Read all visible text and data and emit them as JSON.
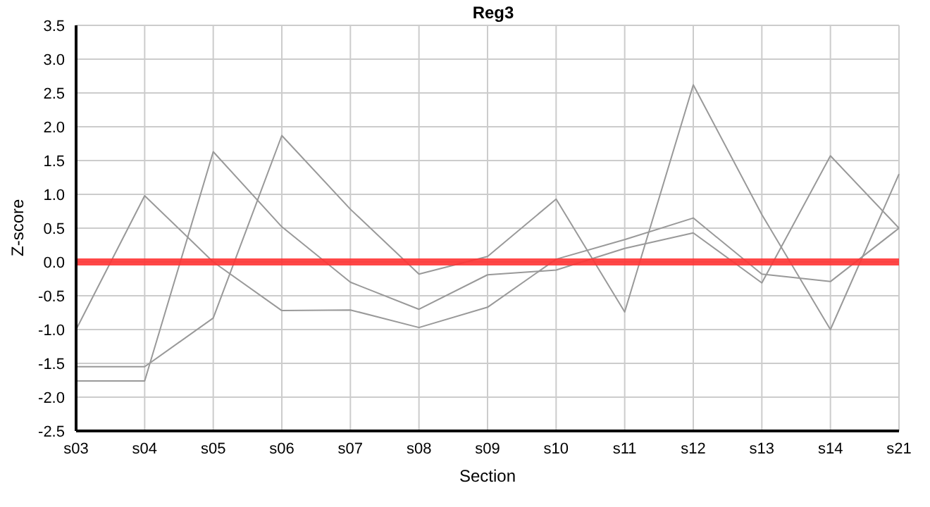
{
  "chart_data": {
    "type": "line",
    "title": "Reg3",
    "xlabel": "Section",
    "ylabel": "Z-score",
    "categories": [
      "s03",
      "s04",
      "s05",
      "s06",
      "s07",
      "s08",
      "s09",
      "s10",
      "s11",
      "s12",
      "s13",
      "s14",
      "s21"
    ],
    "series": [
      {
        "color": "#999999",
        "values": [
          -1.55,
          -1.55,
          -0.83,
          1.87,
          0.78,
          -0.18,
          0.08,
          0.93,
          -0.74,
          2.62,
          0.7,
          -1.0,
          1.3
        ]
      },
      {
        "color": "#999999",
        "values": [
          -1.76,
          -1.76,
          1.63,
          0.52,
          -0.3,
          -0.7,
          -0.19,
          -0.12,
          0.2,
          0.43,
          -0.31,
          1.57,
          0.5
        ]
      },
      {
        "color": "#999999",
        "values": [
          -1.0,
          0.98,
          0.0,
          -0.72,
          -0.71,
          -0.97,
          -0.67,
          0.04,
          0.33,
          0.65,
          -0.18,
          -0.29,
          0.5
        ]
      }
    ],
    "ylim": [
      -2.5,
      3.5
    ],
    "yticks": [
      {
        "value": -2.5,
        "label": "-2.5"
      },
      {
        "value": -2,
        "label": "-2.0"
      },
      {
        "value": -1.5,
        "label": "-1.5"
      },
      {
        "value": -1,
        "label": "-1.0"
      },
      {
        "value": -0.5,
        "label": "-0.5"
      },
      {
        "value": 0,
        "label": "0.0"
      },
      {
        "value": 0.5,
        "label": "0.5"
      },
      {
        "value": 1,
        "label": "1.0"
      },
      {
        "value": 1.5,
        "label": "1.5"
      },
      {
        "value": 2,
        "label": "2.0"
      },
      {
        "value": 2.5,
        "label": "2.5"
      },
      {
        "value": 3,
        "label": "3.0"
      },
      {
        "value": 3.5,
        "label": "3.5"
      }
    ],
    "ref_lines": [
      {
        "axis": "y",
        "value": 0,
        "color": "#ff3333"
      }
    ],
    "grid": true,
    "marker": "none",
    "line_style": "solid",
    "legend": false
  }
}
